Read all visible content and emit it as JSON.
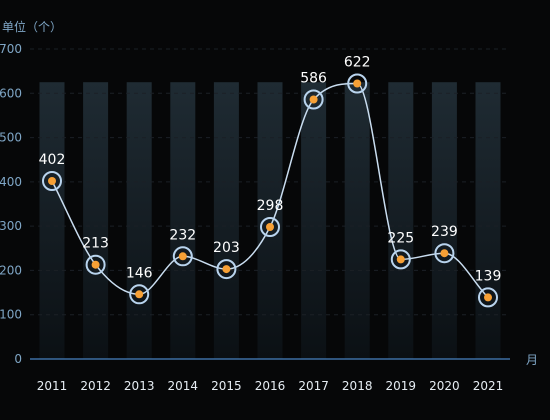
{
  "chart_data": {
    "type": "line",
    "title": "",
    "ylabel": "单位（个）",
    "xlabel": "月",
    "ylim": [
      0,
      700
    ],
    "yticks": [
      0,
      100,
      200,
      300,
      400,
      500,
      600,
      700
    ],
    "categories": [
      "2011",
      "2012",
      "2013",
      "2014",
      "2015",
      "2016",
      "2017",
      "2018",
      "2019",
      "2020",
      "2021"
    ],
    "series": [
      {
        "values": [
          402,
          213,
          146,
          232,
          203,
          298,
          586,
          622,
          225,
          239,
          139
        ]
      }
    ],
    "background_bar_value": 625,
    "smooth": true,
    "grid": true,
    "legend": "none",
    "colors": {
      "background": "#060708",
      "axis_text": "#7fa6c6",
      "category_text": "#e6edf3",
      "grid": "#1b2026",
      "baseline": "#3d6fa3",
      "line": "#c9ddf0",
      "marker_fill": "#f7a035",
      "marker_ring": "#b9d4ee",
      "value_label": "#ffffff",
      "bar_top": "#1f2b33",
      "bar_bottom": "#0b1014"
    }
  }
}
